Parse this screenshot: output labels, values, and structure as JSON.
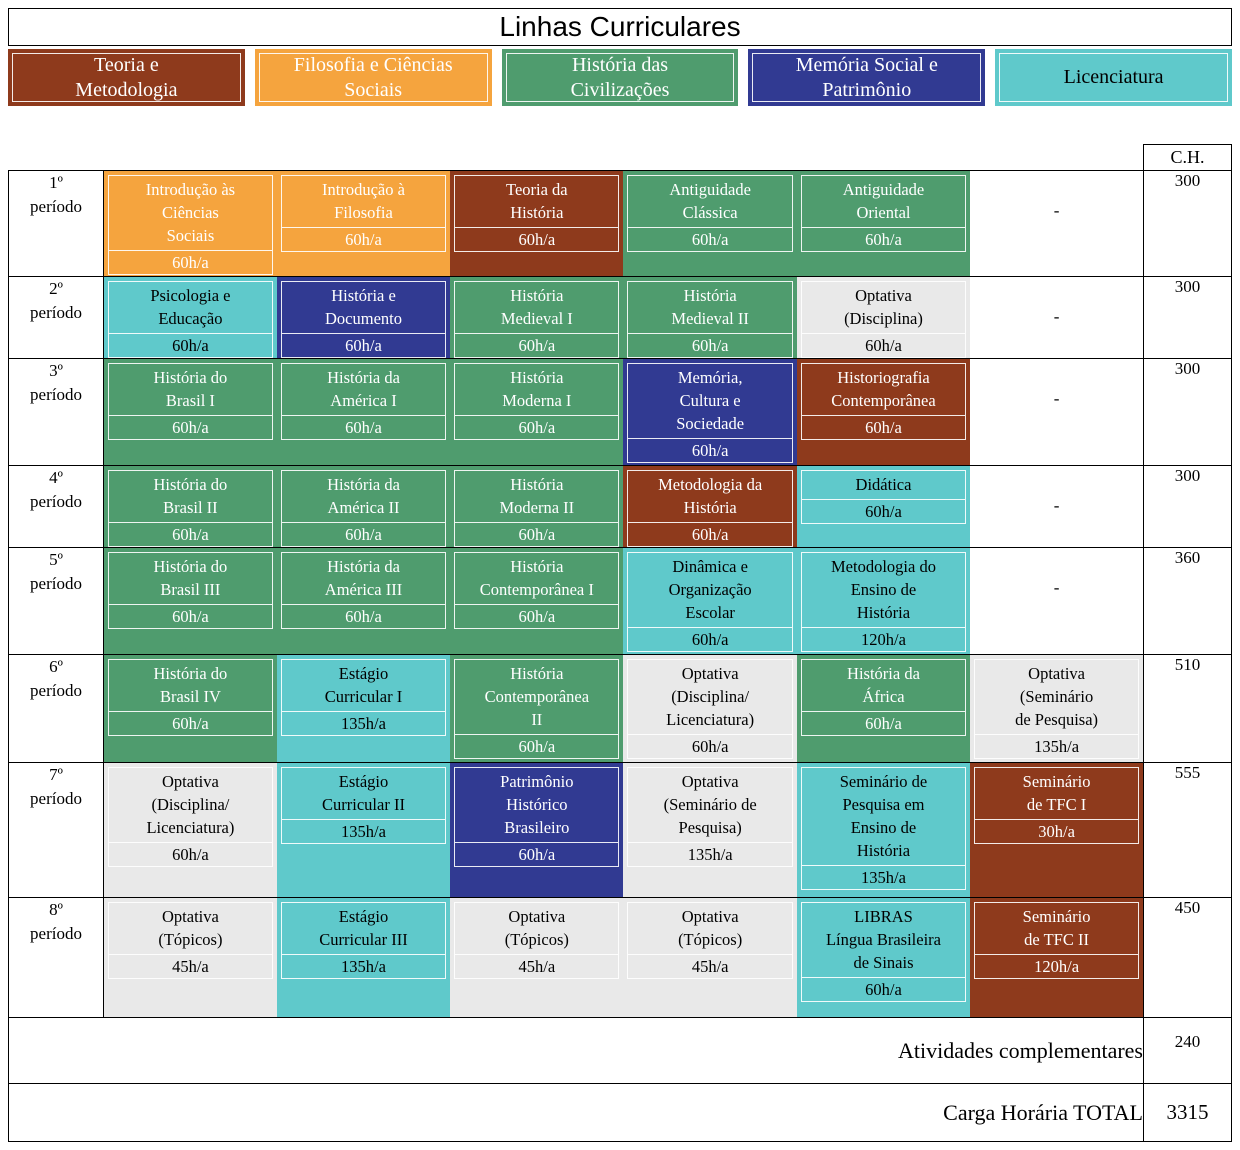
{
  "title": "Linhas Curriculares",
  "ch_header": "C.H.",
  "colors": {
    "teoria": {
      "bg": "#8E3A1C",
      "text": "#FFFFFF"
    },
    "filosofia": {
      "bg": "#F5A43E",
      "text": "#FFFFFF"
    },
    "civilizacoes": {
      "bg": "#4F9C6E",
      "text": "#FFFFFF"
    },
    "memoria": {
      "bg": "#313A92",
      "text": "#FFFFFF"
    },
    "licenciatura": {
      "bg": "#5FC9CB",
      "text": "#000000"
    },
    "optativa": {
      "bg": "#E9E9E9",
      "text": "#000000"
    },
    "empty": {
      "bg": "#FFFFFF",
      "text": "#000000"
    }
  },
  "legend": [
    {
      "key": "teoria",
      "label_lines": [
        "Teoria e",
        "Metodologia"
      ]
    },
    {
      "key": "filosofia",
      "label_lines": [
        "Filosofia e Ciências",
        "Sociais"
      ]
    },
    {
      "key": "civilizacoes",
      "label_lines": [
        "História das",
        "Civilizações"
      ]
    },
    {
      "key": "memoria",
      "label_lines": [
        "Memória Social e",
        "Patrimônio"
      ]
    },
    {
      "key": "licenciatura",
      "label_lines": [
        "Licenciatura"
      ]
    }
  ],
  "rows": [
    {
      "period_lines": [
        "1º",
        "período"
      ],
      "ch": "300",
      "courses": [
        {
          "category": "filosofia",
          "label_lines": [
            "Introdução às",
            "Ciências",
            "Sociais"
          ],
          "hours": "60h/a"
        },
        {
          "category": "filosofia",
          "label_lines": [
            "Introdução à",
            "Filosofia"
          ],
          "hours": "60h/a"
        },
        {
          "category": "teoria",
          "label_lines": [
            "Teoria da",
            "História"
          ],
          "hours": "60h/a"
        },
        {
          "category": "civilizacoes",
          "label_lines": [
            "Antiguidade",
            "Clássica"
          ],
          "hours": "60h/a"
        },
        {
          "category": "civilizacoes",
          "label_lines": [
            "Antiguidade",
            "Oriental"
          ],
          "hours": "60h/a"
        },
        {
          "category": "empty",
          "label_lines": [
            "-"
          ],
          "hours": ""
        }
      ]
    },
    {
      "period_lines": [
        "2º",
        "período"
      ],
      "ch": "300",
      "courses": [
        {
          "category": "licenciatura",
          "label_lines": [
            "Psicologia e",
            "Educação"
          ],
          "hours": "60h/a"
        },
        {
          "category": "memoria",
          "label_lines": [
            "História e",
            "Documento"
          ],
          "hours": "60h/a"
        },
        {
          "category": "civilizacoes",
          "label_lines": [
            "História",
            "Medieval I"
          ],
          "hours": "60h/a"
        },
        {
          "category": "civilizacoes",
          "label_lines": [
            "História",
            "Medieval II"
          ],
          "hours": "60h/a"
        },
        {
          "category": "optativa",
          "label_lines": [
            "Optativa",
            "(Disciplina)"
          ],
          "hours": "60h/a"
        },
        {
          "category": "empty",
          "label_lines": [
            "-"
          ],
          "hours": ""
        }
      ]
    },
    {
      "period_lines": [
        "3º",
        "período"
      ],
      "ch": "300",
      "courses": [
        {
          "category": "civilizacoes",
          "label_lines": [
            "História do",
            "Brasil I"
          ],
          "hours": "60h/a"
        },
        {
          "category": "civilizacoes",
          "label_lines": [
            "História da",
            "América I"
          ],
          "hours": "60h/a"
        },
        {
          "category": "civilizacoes",
          "label_lines": [
            "História",
            "Moderna I"
          ],
          "hours": "60h/a"
        },
        {
          "category": "memoria",
          "label_lines": [
            "Memória,",
            "Cultura e",
            "Sociedade"
          ],
          "hours": "60h/a"
        },
        {
          "category": "teoria",
          "label_lines": [
            "Historiografia",
            "Contemporânea"
          ],
          "hours": "60h/a"
        },
        {
          "category": "empty",
          "label_lines": [
            "-"
          ],
          "hours": ""
        }
      ]
    },
    {
      "period_lines": [
        "4º",
        "período"
      ],
      "ch": "300",
      "courses": [
        {
          "category": "civilizacoes",
          "label_lines": [
            "História do",
            "Brasil II"
          ],
          "hours": "60h/a"
        },
        {
          "category": "civilizacoes",
          "label_lines": [
            "História da",
            "América II"
          ],
          "hours": "60h/a"
        },
        {
          "category": "civilizacoes",
          "label_lines": [
            "História",
            "Moderna II"
          ],
          "hours": "60h/a"
        },
        {
          "category": "teoria",
          "label_lines": [
            "Metodologia da",
            "História"
          ],
          "hours": "60h/a"
        },
        {
          "category": "licenciatura",
          "label_lines": [
            "Didática"
          ],
          "hours": "60h/a"
        },
        {
          "category": "empty",
          "label_lines": [
            "-"
          ],
          "hours": ""
        }
      ]
    },
    {
      "period_lines": [
        "5º",
        "período"
      ],
      "ch": "360",
      "courses": [
        {
          "category": "civilizacoes",
          "label_lines": [
            "História do",
            "Brasil III"
          ],
          "hours": "60h/a"
        },
        {
          "category": "civilizacoes",
          "label_lines": [
            "História da",
            "América III"
          ],
          "hours": "60h/a"
        },
        {
          "category": "civilizacoes",
          "label_lines": [
            "História",
            "Contemporânea I"
          ],
          "hours": "60h/a"
        },
        {
          "category": "licenciatura",
          "label_lines": [
            "Dinâmica e",
            "Organização",
            "Escolar"
          ],
          "hours": "60h/a"
        },
        {
          "category": "licenciatura",
          "label_lines": [
            "Metodologia do",
            "Ensino de",
            "História"
          ],
          "hours": "120h/a"
        },
        {
          "category": "empty",
          "label_lines": [
            "-"
          ],
          "hours": ""
        }
      ]
    },
    {
      "period_lines": [
        "6º",
        "período"
      ],
      "ch": "510",
      "courses": [
        {
          "category": "civilizacoes",
          "label_lines": [
            "História do",
            "Brasil IV"
          ],
          "hours": "60h/a"
        },
        {
          "category": "licenciatura",
          "label_lines": [
            "Estágio",
            "Curricular I"
          ],
          "hours": "135h/a"
        },
        {
          "category": "civilizacoes",
          "label_lines": [
            "História",
            "Contemporânea",
            "II"
          ],
          "hours": "60h/a"
        },
        {
          "category": "optativa",
          "label_lines": [
            "Optativa",
            "(Disciplina/",
            "Licenciatura)"
          ],
          "hours": "60h/a"
        },
        {
          "category": "civilizacoes",
          "label_lines": [
            "História da",
            "África"
          ],
          "hours": "60h/a"
        },
        {
          "category": "optativa",
          "label_lines": [
            "Optativa",
            "(Seminário",
            "de Pesquisa)"
          ],
          "hours": "135h/a"
        }
      ]
    },
    {
      "period_lines": [
        "7º",
        "período"
      ],
      "ch": "555",
      "courses": [
        {
          "category": "optativa",
          "label_lines": [
            "Optativa",
            "(Disciplina/",
            "Licenciatura)"
          ],
          "hours": "60h/a"
        },
        {
          "category": "licenciatura",
          "label_lines": [
            "Estágio",
            "Curricular II"
          ],
          "hours": "135h/a"
        },
        {
          "category": "memoria",
          "label_lines": [
            "Patrimônio",
            "Histórico",
            "Brasileiro"
          ],
          "hours": "60h/a"
        },
        {
          "category": "optativa",
          "label_lines": [
            "Optativa",
            "(Seminário de",
            "Pesquisa)"
          ],
          "hours": "135h/a"
        },
        {
          "category": "licenciatura",
          "label_lines": [
            "Seminário de",
            "Pesquisa em",
            "Ensino de",
            "História"
          ],
          "hours": "135h/a"
        },
        {
          "category": "teoria",
          "label_lines": [
            "Seminário",
            "de TFC I"
          ],
          "hours": "30h/a"
        }
      ]
    },
    {
      "period_lines": [
        "8º",
        "período"
      ],
      "ch": "450",
      "courses": [
        {
          "category": "optativa",
          "label_lines": [
            "Optativa",
            "(Tópicos)"
          ],
          "hours": "45h/a"
        },
        {
          "category": "licenciatura",
          "label_lines": [
            "Estágio",
            "Curricular III"
          ],
          "hours": "135h/a"
        },
        {
          "category": "optativa",
          "label_lines": [
            "Optativa",
            "(Tópicos)"
          ],
          "hours": "45h/a"
        },
        {
          "category": "optativa",
          "label_lines": [
            "Optativa",
            "(Tópicos)"
          ],
          "hours": "45h/a"
        },
        {
          "category": "licenciatura",
          "label_lines": [
            "LIBRAS",
            "Língua Brasileira",
            "de Sinais"
          ],
          "hours": "60h/a"
        },
        {
          "category": "teoria",
          "label_lines": [
            "Seminário",
            "de TFC II"
          ],
          "hours": "120h/a"
        }
      ]
    }
  ],
  "summary": [
    {
      "label": "Atividades complementares",
      "value": "240"
    },
    {
      "label": "Carga Horária TOTAL",
      "value": "3315"
    }
  ]
}
